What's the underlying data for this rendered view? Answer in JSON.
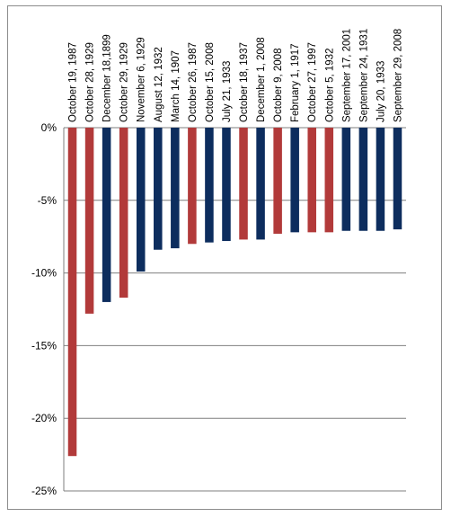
{
  "chart_data": {
    "type": "bar",
    "title": "",
    "xlabel": "",
    "ylabel": "",
    "ylim": [
      -25,
      0
    ],
    "y_ticks": [
      0,
      -5,
      -10,
      -15,
      -20,
      -25
    ],
    "y_tick_labels": [
      "0%",
      "-5%",
      "-10%",
      "-15%",
      "-20%",
      "-25%"
    ],
    "grid": true,
    "legend": "none",
    "colors": {
      "red": "#b23a3a",
      "navy": "#0d2d5e",
      "grid": "#7f7f7f",
      "axis": "#7f7f7f"
    },
    "categories": [
      "October 19, 1987",
      "October 28, 1929",
      "December 18,1899",
      "October 29, 1929",
      "November 6, 1929",
      "August 12, 1932",
      "March 14, 1907",
      "October 26, 1987",
      "October 15, 2008",
      "July 21, 1933",
      "October 18, 1937",
      "December 1, 2008",
      "October 9, 2008",
      "February 1, 1917",
      "October 27, 1997",
      "October 5, 1932",
      "September 17, 2001",
      "September 24, 1931",
      "July 20, 1933",
      "September 29, 2008"
    ],
    "values": [
      -22.6,
      -12.8,
      -12.0,
      -11.7,
      -9.9,
      -8.4,
      -8.3,
      -8.0,
      -7.9,
      -7.8,
      -7.7,
      -7.7,
      -7.3,
      -7.2,
      -7.2,
      -7.2,
      -7.1,
      -7.1,
      -7.1,
      -7.0
    ],
    "bar_colors": [
      "red",
      "red",
      "navy",
      "red",
      "navy",
      "navy",
      "navy",
      "red",
      "navy",
      "navy",
      "red",
      "navy",
      "red",
      "navy",
      "red",
      "red",
      "navy",
      "navy",
      "navy",
      "navy"
    ]
  }
}
